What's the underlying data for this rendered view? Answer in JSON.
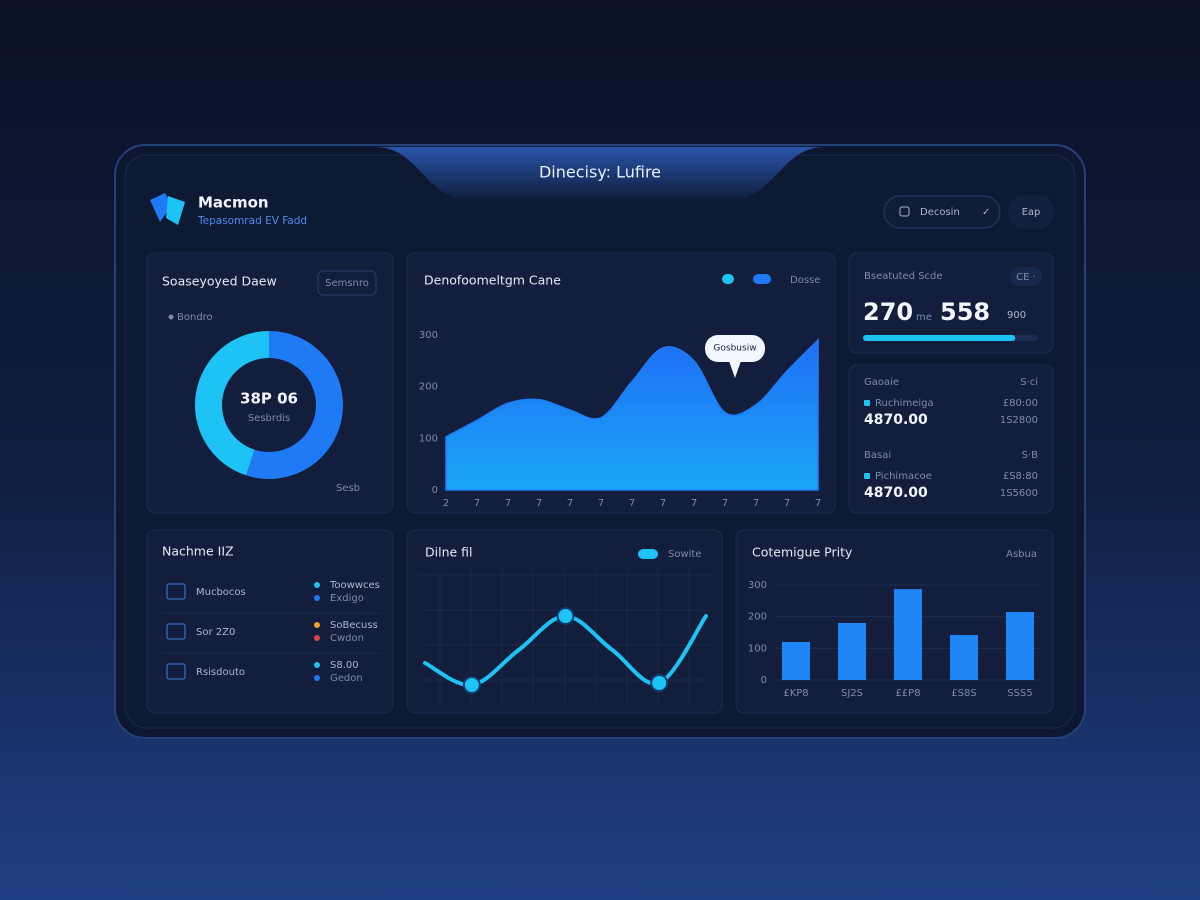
{
  "window": {
    "title": "Dinecisy: Lufire"
  },
  "header": {
    "brand": "Macmon",
    "subtitle": "Tepasomrad EV Fadd",
    "button": "Decosin",
    "user": "Eap"
  },
  "donut_panel": {
    "title": "Soaseyoyed Daew",
    "button": "Semsnro",
    "center_value": "38P 06",
    "center_label": "Sesbrdis",
    "footnote": "Sesb"
  },
  "stats": {
    "title": "Bseatuted Scde",
    "badge": "CE ·",
    "value_a": "270",
    "unit": "me",
    "value_b": "558",
    "value_c": "900",
    "progress": 87
  },
  "balances": [
    {
      "label": "Gaoaie",
      "label_right": "S·ci",
      "item": "Ruchimeiga",
      "item_right": "£80:00",
      "amount": "4870.00",
      "amount_right": "1S2800"
    },
    {
      "label": "Basai",
      "label_right": "S·B",
      "item": "Pichimacoe",
      "item_right": "£S8:80",
      "amount": "4870.00",
      "amount_right": "1S5600"
    }
  ],
  "machines": {
    "title": "Nachme IIZ",
    "rows": [
      {
        "label": "Mucbocos",
        "line1": "Toowwces",
        "line2": "Exdigo",
        "color1": "#1ec3f5",
        "color2": "#1f7bf5"
      },
      {
        "label": "Sor 2Z0",
        "line1": "SoBecuss",
        "line2": "Cwdon",
        "color1": "#f0a030",
        "color2": "#e0404a"
      },
      {
        "label": "Rsisdouto",
        "line1": "S8.00",
        "line2": "Gedon",
        "color1": "#1ec3f5",
        "color2": "#1f7bf5"
      }
    ]
  },
  "chart_data": [
    {
      "type": "pie",
      "categories": [
        "Bondro",
        null
      ],
      "values": [
        55,
        45
      ],
      "colors": [
        "#1f7bf5",
        "#1ec3f5"
      ]
    },
    {
      "type": "area",
      "title": "Denofoomeltgm Cane",
      "annotation": "Gosbusiw",
      "categories": [
        "2",
        "7",
        "7",
        "7",
        "7",
        "7",
        "7",
        "7",
        "7",
        "7",
        "7",
        "7",
        "7"
      ],
      "series": [
        {
          "name": "Dosse",
          "color": "#1f7bf5",
          "values": [
            103,
            135,
            168,
            175,
            155,
            140,
            210,
            275,
            250,
            150,
            165,
            230,
            290
          ]
        }
      ],
      "ylim": [
        0,
        300
      ],
      "yticks": [
        0,
        100,
        200,
        300
      ]
    },
    {
      "type": "line",
      "title": "Dilne fil",
      "series": [
        {
          "name": "Sowite",
          "color": "#1ec3f5",
          "values": [
            37,
            15,
            50,
            84,
            50,
            17,
            84
          ]
        }
      ],
      "ylim": [
        0,
        100
      ]
    },
    {
      "type": "bar",
      "title": "Cotemigue Prity",
      "subtitle": "Asbua",
      "categories": [
        "£KP8",
        "SJ2S",
        "££P8",
        "£S8S",
        "SSS5"
      ],
      "values": [
        120,
        180,
        287,
        142,
        215
      ],
      "color": "#1f86f7",
      "ylim": [
        0,
        300
      ],
      "yticks": [
        0,
        100,
        200,
        300
      ],
      "grid": true
    }
  ]
}
